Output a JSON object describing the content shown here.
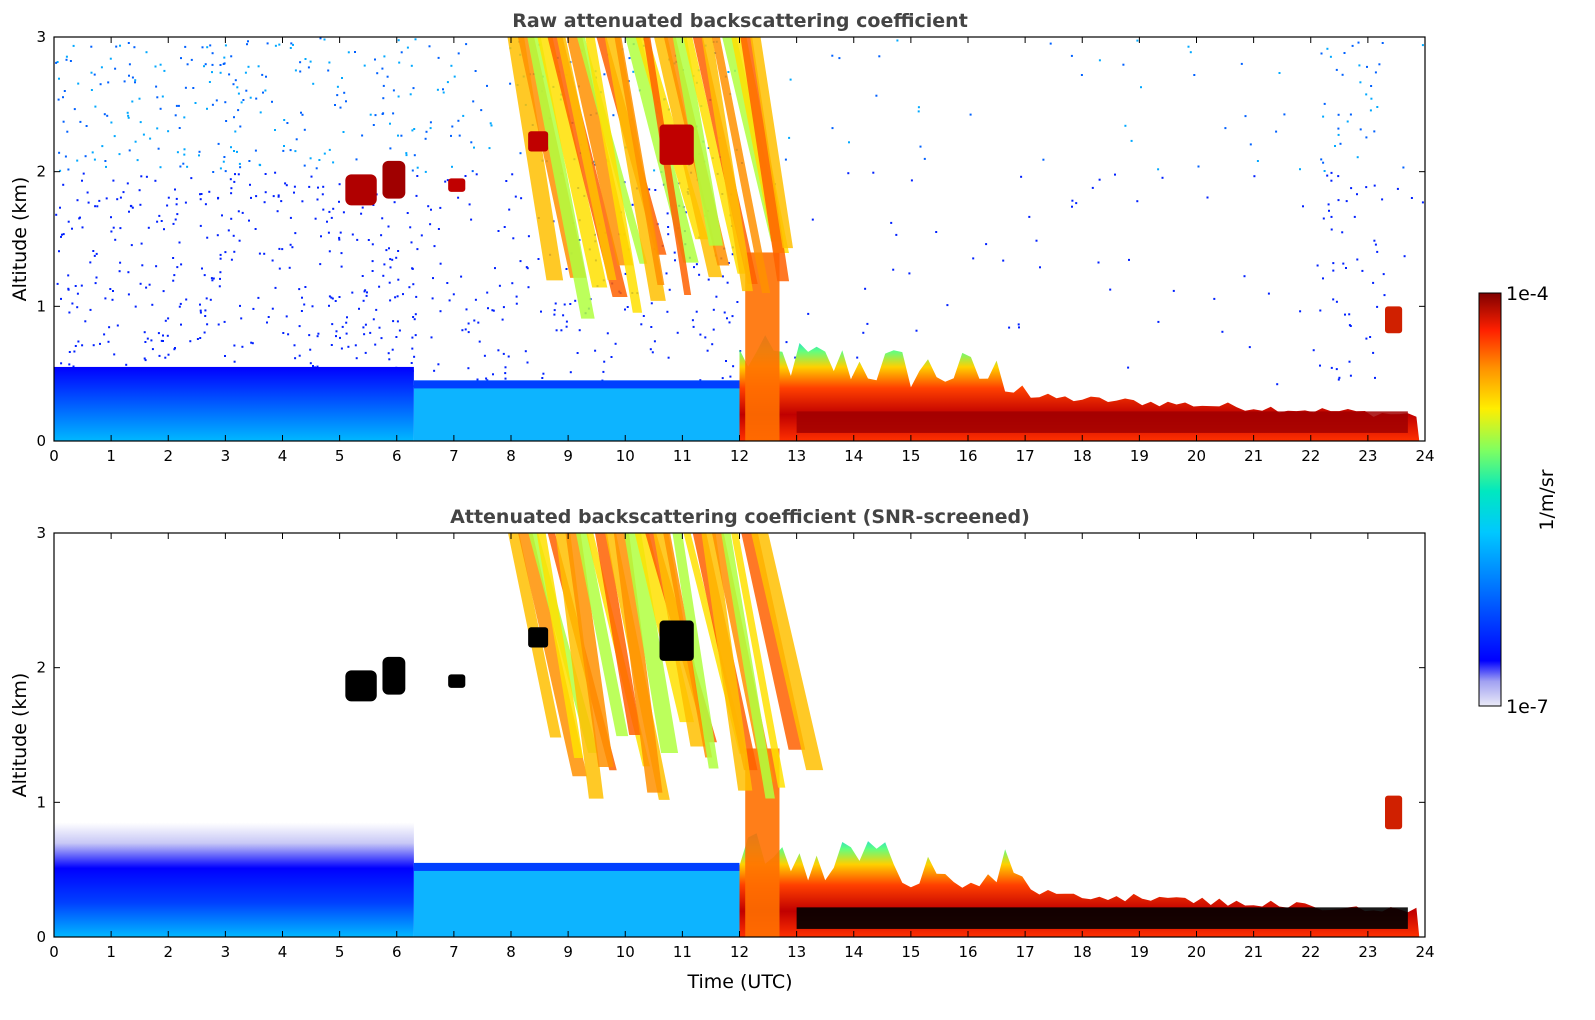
{
  "chart_data": [
    {
      "type": "heatmap",
      "title": "Raw attenuated backscattering coefficient",
      "xlabel": "",
      "ylabel": "Altitude (km)",
      "xlim": [
        0,
        24
      ],
      "ylim": [
        0,
        3
      ],
      "x_ticks": [
        "0",
        "1",
        "2",
        "3",
        "4",
        "5",
        "6",
        "7",
        "8",
        "9",
        "10",
        "11",
        "12",
        "13",
        "14",
        "15",
        "16",
        "17",
        "18",
        "19",
        "20",
        "21",
        "22",
        "23",
        "24"
      ],
      "y_ticks": [
        "0",
        "1",
        "2",
        "3"
      ],
      "features": [
        {
          "desc": "boundary layer aerosol",
          "x": [
            0,
            6.3
          ],
          "y": [
            0,
            0.55
          ],
          "level": "low"
        },
        {
          "desc": "cloud layer",
          "x": [
            5.1,
            6.1
          ],
          "y": [
            1.75,
            2.05
          ],
          "level": "high"
        },
        {
          "desc": "precipitating cloud streaks",
          "x": [
            7.9,
            12.6
          ],
          "y": [
            0.3,
            3.0
          ],
          "level": "medium"
        },
        {
          "desc": "dense low cloud",
          "x": [
            12.0,
            23.9
          ],
          "y": [
            0,
            0.6
          ],
          "level": "high"
        },
        {
          "desc": "small cloud",
          "x": [
            23.3,
            23.6
          ],
          "y": [
            0.8,
            1.0
          ],
          "level": "high"
        }
      ]
    },
    {
      "type": "heatmap",
      "title": "Attenuated backscattering coefficient (SNR-screened)",
      "xlabel": "Time (UTC)",
      "ylabel": "Altitude (km)",
      "xlim": [
        0,
        24
      ],
      "ylim": [
        0,
        3
      ],
      "x_ticks": [
        "0",
        "1",
        "2",
        "3",
        "4",
        "5",
        "6",
        "7",
        "8",
        "9",
        "10",
        "11",
        "12",
        "13",
        "14",
        "15",
        "16",
        "17",
        "18",
        "19",
        "20",
        "21",
        "22",
        "23",
        "24"
      ],
      "y_ticks": [
        "0",
        "1",
        "2",
        "3"
      ],
      "features": [
        {
          "desc": "boundary layer aerosol",
          "x": [
            0,
            6.3
          ],
          "y": [
            0,
            0.85
          ],
          "level": "low"
        },
        {
          "desc": "cloud layer",
          "x": [
            5.1,
            6.1
          ],
          "y": [
            1.75,
            2.1
          ],
          "level": "high"
        },
        {
          "desc": "precipitating cloud streaks",
          "x": [
            7.9,
            12.6
          ],
          "y": [
            0.6,
            3.0
          ],
          "level": "medium"
        },
        {
          "desc": "dense low cloud",
          "x": [
            12.0,
            23.9
          ],
          "y": [
            0,
            0.75
          ],
          "level": "high"
        },
        {
          "desc": "small cloud",
          "x": [
            23.3,
            23.6
          ],
          "y": [
            0.8,
            1.05
          ],
          "level": "high"
        }
      ]
    }
  ],
  "colorbar": {
    "max_label": "1e-4",
    "min_label": "1e-7",
    "unit_label": "1/m/sr",
    "colors": [
      "#ebebf7",
      "#c4c4f0",
      "#8080ee",
      "#0000ff",
      "#0060ff",
      "#00b0ff",
      "#00e0e0",
      "#40ff90",
      "#b0ff40",
      "#ffee00",
      "#ffa000",
      "#ff4000",
      "#e00000",
      "#800000"
    ]
  }
}
